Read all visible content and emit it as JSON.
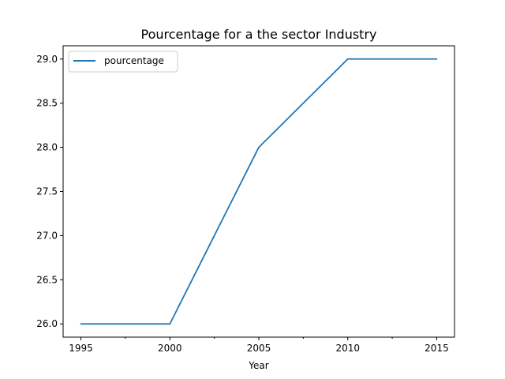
{
  "chart_data": {
    "type": "line",
    "title": "Pourcentage for a the sector Industry",
    "xlabel": "Year",
    "ylabel": "",
    "x": [
      1995,
      2000,
      2005,
      2010,
      2015
    ],
    "x_tick_labels": [
      "1995",
      "2000",
      "2005",
      "2010",
      "2015"
    ],
    "x_minor_ticks": [
      1997.5,
      2002.5,
      2007.5,
      2012.5
    ],
    "xlim": [
      1994,
      2016
    ],
    "y_ticks": [
      26.0,
      26.5,
      27.0,
      27.5,
      28.0,
      28.5,
      29.0
    ],
    "y_tick_labels": [
      "26.0",
      "26.5",
      "27.0",
      "27.5",
      "28.0",
      "28.5",
      "29.0"
    ],
    "ylim": [
      25.85,
      29.15
    ],
    "grid": false,
    "legend_position": "top-left",
    "series": [
      {
        "name": "pourcentage",
        "color": "#1f77b4",
        "values": [
          26.0,
          26.0,
          28.0,
          29.0,
          29.0
        ]
      }
    ]
  }
}
